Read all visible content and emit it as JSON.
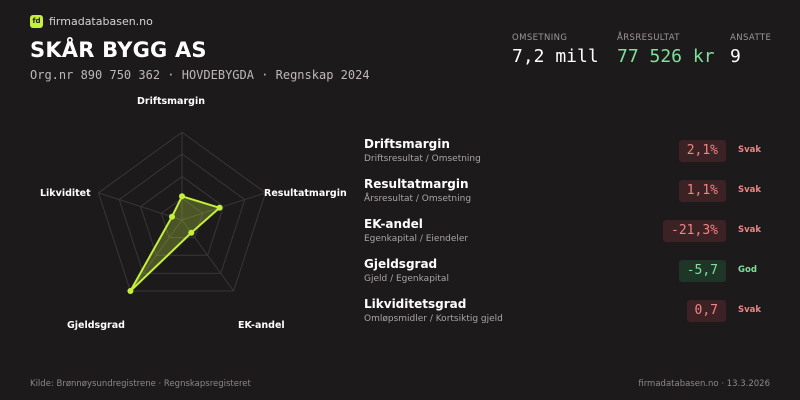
{
  "brand": {
    "logo_text": "fd",
    "name": "firmadatabasen.no"
  },
  "company": {
    "name": "SKÅR BYGG AS",
    "meta": "Org.nr 890 750 362 · HOVDEBYGDA · Regnskap 2024"
  },
  "kpis": [
    {
      "label": "OMSETNING",
      "value": "7,2 mill"
    },
    {
      "label": "ÅRSRESULTAT",
      "value": "77 526 kr",
      "color": "#7fe09b"
    },
    {
      "label": "ANSATTE",
      "value": "9"
    }
  ],
  "radar": {
    "axes": [
      "Driftsmargin",
      "Resultatmargin",
      "EK-andel",
      "Gjeldsgrad",
      "Likviditet"
    ],
    "values": [
      0.27,
      0.45,
      0.18,
      1.0,
      0.12
    ],
    "colors": {
      "fill": "#c4f03c",
      "grid": "#3a3638"
    }
  },
  "metrics": [
    {
      "name": "Driftsmargin",
      "formula": "Driftsresultat / Omsetning",
      "value": "2,1%",
      "status": "Svak",
      "good": false
    },
    {
      "name": "Resultatmargin",
      "formula": "Årsresultat / Omsetning",
      "value": "1,1%",
      "status": "Svak",
      "good": false
    },
    {
      "name": "EK-andel",
      "formula": "Egenkapital / Eiendeler",
      "value": "-21,3%",
      "status": "Svak",
      "good": false
    },
    {
      "name": "Gjeldsgrad",
      "formula": "Gjeld / Egenkapital",
      "value": "-5,7",
      "status": "God",
      "good": true
    },
    {
      "name": "Likviditetsgrad",
      "formula": "Omløpsmidler / Kortsiktig gjeld",
      "value": "0,7",
      "status": "Svak",
      "good": false
    }
  ],
  "footer": {
    "source": "Kilde: Brønnøysundregistrene · Regnskapsregisteret",
    "site_date": "firmadatabasen.no · 13.3.2026"
  }
}
